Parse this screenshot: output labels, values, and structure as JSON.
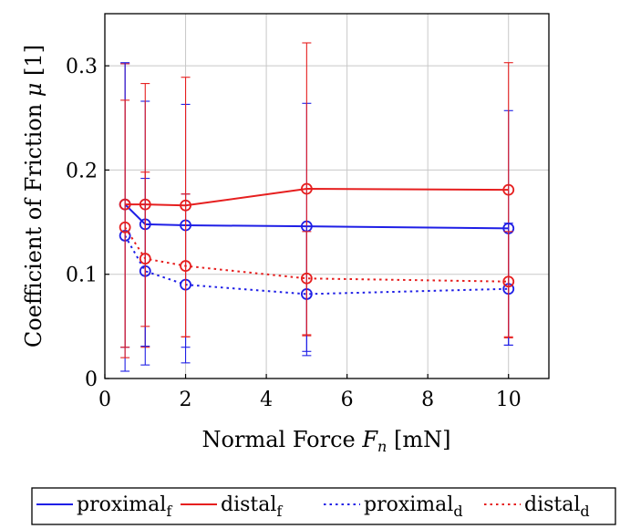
{
  "chart_data": {
    "type": "line",
    "xlabel": "Normal Force",
    "xlabel_symbol": "F",
    "xlabel_symbol_sub": "n",
    "xlabel_unit": "[mN]",
    "ylabel": "Coefficient of Friction",
    "ylabel_symbol": "μ",
    "ylabel_unit": "[1]",
    "xlim": [
      0,
      11
    ],
    "ylim": [
      0,
      0.35
    ],
    "xticks": [
      0,
      2,
      4,
      6,
      8,
      10
    ],
    "xtick_labels": [
      "0",
      "2",
      "4",
      "6",
      "8",
      "10"
    ],
    "yticks": [
      0,
      0.1,
      0.2,
      0.3
    ],
    "ytick_labels": [
      "0",
      "0.1",
      "0.2",
      "0.3"
    ],
    "grid": true,
    "legend_position": "below",
    "x": [
      0.5,
      1,
      2,
      5,
      10
    ],
    "series": [
      {
        "name": "proximal",
        "name_sub": "f",
        "color": "#1f1fe6",
        "dash": "solid",
        "values": [
          0.167,
          0.148,
          0.147,
          0.146,
          0.144
        ],
        "err_low": [
          0.137,
          0.117,
          0.117,
          0.12,
          0.112
        ],
        "err_high": [
          0.135,
          0.118,
          0.116,
          0.118,
          0.113
        ]
      },
      {
        "name": "distal",
        "name_sub": "f",
        "color": "#e61f1f",
        "dash": "solid",
        "values": [
          0.167,
          0.167,
          0.166,
          0.182,
          0.181
        ],
        "err_low": [
          0.137,
          0.137,
          0.126,
          0.141,
          0.142
        ],
        "err_high": [
          0.135,
          0.116,
          0.123,
          0.14,
          0.122
        ]
      },
      {
        "name": "proximal",
        "name_sub": "d",
        "color": "#1f1fe6",
        "dash": "dotted",
        "values": [
          0.137,
          0.103,
          0.09,
          0.081,
          0.086
        ],
        "err_low": [
          0.13,
          0.09,
          0.075,
          0.059,
          0.054
        ],
        "err_high": [
          0.166,
          0.089,
          0.087,
          0.065,
          0.063
        ]
      },
      {
        "name": "distal",
        "name_sub": "d",
        "color": "#e61f1f",
        "dash": "dotted",
        "values": [
          0.145,
          0.115,
          0.108,
          0.096,
          0.093
        ],
        "err_low": [
          0.125,
          0.065,
          0.068,
          0.054,
          0.053
        ],
        "err_high": [
          0.122,
          0.083,
          0.069,
          0.045,
          0.048
        ]
      }
    ]
  }
}
